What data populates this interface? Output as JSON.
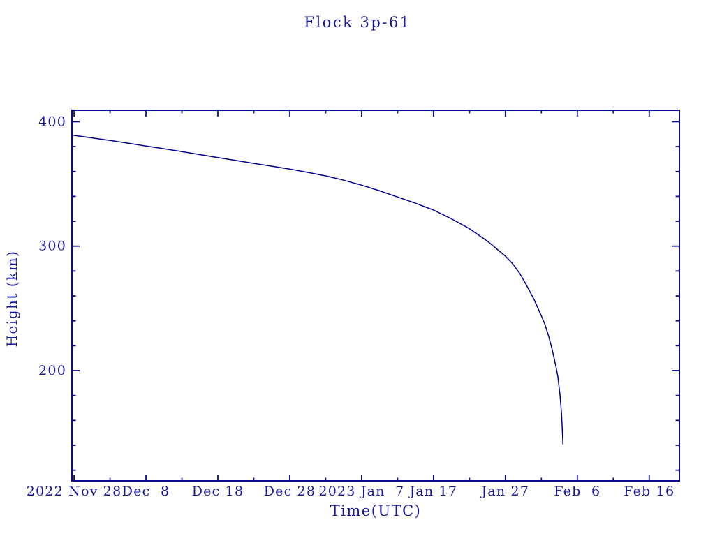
{
  "colors": {
    "ink": "#17179b",
    "axis": "#0a0a90",
    "curve": "#00008b",
    "background": "#ffffff"
  },
  "chart_data": {
    "type": "line",
    "title": "Flock 3p-61",
    "xlabel": "Time(UTC)",
    "ylabel": "Height (km)",
    "grid": false,
    "legend": null,
    "x_axis": {
      "unit": "days since 2022 Nov 28 (UTC)",
      "range_days": [
        -0.3,
        84.2
      ],
      "major_ticks": [
        {
          "day": 0,
          "label": "2022 Nov 28"
        },
        {
          "day": 10,
          "label": "Dec  8"
        },
        {
          "day": 20,
          "label": "Dec 18"
        },
        {
          "day": 30,
          "label": "Dec 28"
        },
        {
          "day": 40,
          "label": "2023 Jan  7"
        },
        {
          "day": 50,
          "label": "Jan 17"
        },
        {
          "day": 60,
          "label": "Jan 27"
        },
        {
          "day": 70,
          "label": "Feb  6"
        },
        {
          "day": 80,
          "label": "Feb 16"
        }
      ],
      "minor_ticks_days": [
        5,
        15,
        25,
        35,
        45,
        55,
        65,
        75
      ]
    },
    "y_axis": {
      "unit": "km",
      "range_km": [
        111.4,
        409.2
      ],
      "major_ticks": [
        {
          "value": 200,
          "label": "200"
        },
        {
          "value": 300,
          "label": "300"
        },
        {
          "value": 400,
          "label": "400"
        }
      ],
      "minor_ticks_km": [
        120,
        140,
        160,
        180,
        220,
        240,
        260,
        280,
        320,
        340,
        360,
        380
      ]
    },
    "series": [
      {
        "name": "Flock 3p-61 orbital height",
        "points_day_km": [
          [
            -0.3,
            389.4
          ],
          [
            0,
            389
          ],
          [
            2.5,
            387
          ],
          [
            5,
            385
          ],
          [
            7.5,
            382.8
          ],
          [
            10,
            380.5
          ],
          [
            12.5,
            378.3
          ],
          [
            15,
            376
          ],
          [
            17.5,
            373.6
          ],
          [
            20,
            371.2
          ],
          [
            22.5,
            368.9
          ],
          [
            25,
            366.5
          ],
          [
            27.5,
            364.3
          ],
          [
            30,
            362
          ],
          [
            32.5,
            359.3
          ],
          [
            35,
            356.5
          ],
          [
            37.5,
            353
          ],
          [
            40,
            349
          ],
          [
            42.5,
            344.5
          ],
          [
            45,
            339.5
          ],
          [
            47.5,
            334.5
          ],
          [
            50,
            329
          ],
          [
            52.5,
            322
          ],
          [
            55,
            314
          ],
          [
            57.5,
            304
          ],
          [
            60,
            292
          ],
          [
            61,
            286
          ],
          [
            62,
            278
          ],
          [
            63,
            268
          ],
          [
            64,
            257
          ],
          [
            65,
            244
          ],
          [
            65.5,
            237
          ],
          [
            66,
            228
          ],
          [
            66.5,
            217
          ],
          [
            67,
            204
          ],
          [
            67.3,
            195
          ],
          [
            67.6,
            180
          ],
          [
            67.8,
            166
          ],
          [
            67.9,
            154
          ],
          [
            68,
            141
          ]
        ]
      }
    ]
  }
}
